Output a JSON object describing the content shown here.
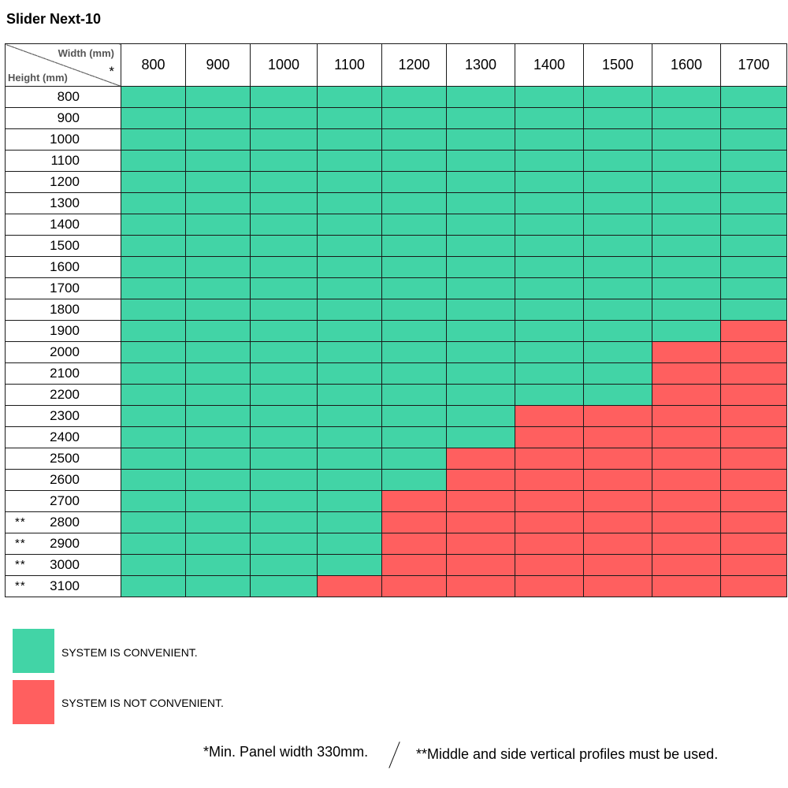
{
  "title": "Slider Next-10",
  "header": {
    "width_label": "Width (mm)",
    "width_star": "*",
    "height_label": "Height (mm)"
  },
  "colors": {
    "convenient": "#42d4a6",
    "not_convenient": "#ff5f5f"
  },
  "chart_data": {
    "type": "table",
    "title": "Slider Next-10",
    "xlabel": "Width (mm)",
    "ylabel": "Height (mm)",
    "widths": [
      "800",
      "900",
      "1000",
      "1100",
      "1200",
      "1300",
      "1400",
      "1500",
      "1600",
      "1700"
    ],
    "rows": [
      {
        "height": "800",
        "mark": "",
        "convenient_up_to_index": 10
      },
      {
        "height": "900",
        "mark": "",
        "convenient_up_to_index": 10
      },
      {
        "height": "1000",
        "mark": "",
        "convenient_up_to_index": 10
      },
      {
        "height": "1100",
        "mark": "",
        "convenient_up_to_index": 10
      },
      {
        "height": "1200",
        "mark": "",
        "convenient_up_to_index": 10
      },
      {
        "height": "1300",
        "mark": "",
        "convenient_up_to_index": 10
      },
      {
        "height": "1400",
        "mark": "",
        "convenient_up_to_index": 10
      },
      {
        "height": "1500",
        "mark": "",
        "convenient_up_to_index": 10
      },
      {
        "height": "1600",
        "mark": "",
        "convenient_up_to_index": 10
      },
      {
        "height": "1700",
        "mark": "",
        "convenient_up_to_index": 10
      },
      {
        "height": "1800",
        "mark": "",
        "convenient_up_to_index": 10
      },
      {
        "height": "1900",
        "mark": "",
        "convenient_up_to_index": 9
      },
      {
        "height": "2000",
        "mark": "",
        "convenient_up_to_index": 8
      },
      {
        "height": "2100",
        "mark": "",
        "convenient_up_to_index": 8
      },
      {
        "height": "2200",
        "mark": "",
        "convenient_up_to_index": 8
      },
      {
        "height": "2300",
        "mark": "",
        "convenient_up_to_index": 6
      },
      {
        "height": "2400",
        "mark": "",
        "convenient_up_to_index": 6
      },
      {
        "height": "2500",
        "mark": "",
        "convenient_up_to_index": 5
      },
      {
        "height": "2600",
        "mark": "",
        "convenient_up_to_index": 5
      },
      {
        "height": "2700",
        "mark": "",
        "convenient_up_to_index": 4
      },
      {
        "height": "2800",
        "mark": "**",
        "convenient_up_to_index": 4
      },
      {
        "height": "2900",
        "mark": "**",
        "convenient_up_to_index": 4
      },
      {
        "height": "3000",
        "mark": "**",
        "convenient_up_to_index": 4
      },
      {
        "height": "3100",
        "mark": "**",
        "convenient_up_to_index": 3
      }
    ]
  },
  "legend": {
    "convenient_label": "SYSTEM IS CONVENIENT.",
    "not_convenient_label": "SYSTEM IS NOT CONVENIENT."
  },
  "footnotes": {
    "note1": "*Min. Panel width 330mm.",
    "note2": "**Middle and side vertical profiles must be used."
  }
}
